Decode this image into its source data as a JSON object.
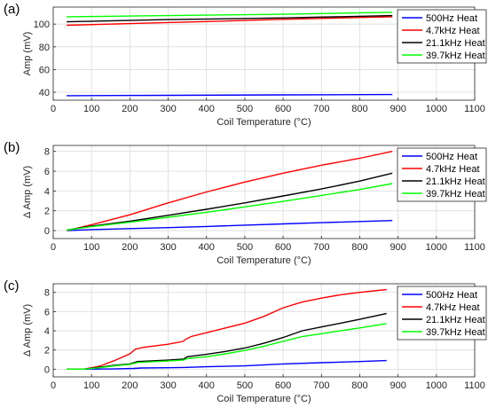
{
  "chart_data": [
    {
      "type": "line",
      "panel_label": "(a)",
      "xlabel": "Coil Temperature (°C)",
      "ylabel": "Amp (mV)",
      "xlim": [
        0,
        1100
      ],
      "ylim": [
        33,
        115
      ],
      "xticks": [
        0,
        100,
        200,
        300,
        400,
        500,
        600,
        700,
        800,
        900,
        1000,
        1100
      ],
      "yticks": [
        40,
        60,
        80,
        100
      ],
      "grid": true,
      "legend_position": "top-right",
      "series": [
        {
          "name": "500Hz Heat",
          "color": "#0000ff",
          "x": [
            35,
            300,
            600,
            885
          ],
          "y": [
            37,
            37.3,
            37.7,
            38
          ]
        },
        {
          "name": "4.7kHz Heat",
          "color": "#ff0000",
          "x": [
            35,
            200,
            400,
            600,
            885
          ],
          "y": [
            99,
            100.5,
            102.3,
            104.2,
            106.5
          ]
        },
        {
          "name": "21.1kHz Heat",
          "color": "#000000",
          "x": [
            35,
            300,
            600,
            885
          ],
          "y": [
            102,
            104,
            105.5,
            107.5
          ]
        },
        {
          "name": "39.7kHz Heat",
          "color": "#00ff00",
          "x": [
            35,
            300,
            600,
            885
          ],
          "y": [
            106.5,
            107.5,
            108.7,
            110.5
          ]
        }
      ]
    },
    {
      "type": "line",
      "panel_label": "(b)",
      "xlabel": "Coil Temperature (°C)",
      "ylabel": "Δ Amp (mV)",
      "xlim": [
        0,
        1100
      ],
      "ylim": [
        -0.8,
        8.6
      ],
      "xticks": [
        0,
        100,
        200,
        300,
        400,
        500,
        600,
        700,
        800,
        900,
        1000,
        1100
      ],
      "yticks": [
        0,
        2,
        4,
        6,
        8
      ],
      "grid": true,
      "legend_position": "top-right",
      "series": [
        {
          "name": "500Hz Heat",
          "color": "#0000ff",
          "x": [
            35,
            100,
            200,
            300,
            400,
            500,
            600,
            700,
            800,
            885
          ],
          "y": [
            0,
            0.1,
            0.2,
            0.3,
            0.42,
            0.55,
            0.68,
            0.8,
            0.92,
            1.02
          ]
        },
        {
          "name": "4.7kHz Heat",
          "color": "#ff0000",
          "x": [
            35,
            100,
            200,
            300,
            400,
            500,
            600,
            700,
            800,
            885
          ],
          "y": [
            0,
            0.6,
            1.6,
            2.8,
            3.9,
            4.9,
            5.8,
            6.6,
            7.3,
            8.0
          ]
        },
        {
          "name": "21.1kHz Heat",
          "color": "#000000",
          "x": [
            35,
            100,
            200,
            300,
            400,
            500,
            600,
            700,
            800,
            885
          ],
          "y": [
            0.05,
            0.45,
            0.95,
            1.55,
            2.15,
            2.8,
            3.5,
            4.2,
            5.0,
            5.8
          ]
        },
        {
          "name": "39.7kHz Heat",
          "color": "#00ff00",
          "x": [
            35,
            100,
            200,
            300,
            400,
            500,
            600,
            700,
            800,
            885
          ],
          "y": [
            0.05,
            0.4,
            0.85,
            1.35,
            1.85,
            2.4,
            2.95,
            3.55,
            4.15,
            4.75
          ]
        }
      ]
    },
    {
      "type": "line",
      "panel_label": "(c)",
      "xlabel": "Coil Temperature (°C)",
      "ylabel": "Δ Amp (mV)",
      "xlim": [
        0,
        1100
      ],
      "ylim": [
        -0.8,
        8.9
      ],
      "xticks": [
        0,
        100,
        200,
        300,
        400,
        500,
        600,
        700,
        800,
        900,
        1000,
        1100
      ],
      "yticks": [
        0,
        2,
        4,
        6,
        8
      ],
      "grid": true,
      "legend_position": "top-right",
      "series": [
        {
          "name": "500Hz Heat",
          "color": "#0000ff",
          "x": [
            35,
            80,
            150,
            210,
            230,
            300,
            340,
            400,
            500,
            600,
            700,
            800,
            870
          ],
          "y": [
            0,
            0,
            0.02,
            0.08,
            0.12,
            0.15,
            0.18,
            0.25,
            0.35,
            0.55,
            0.68,
            0.8,
            0.9
          ]
        },
        {
          "name": "4.7kHz Heat",
          "color": "#ff0000",
          "x": [
            35,
            80,
            120,
            160,
            200,
            215,
            240,
            300,
            340,
            345,
            360,
            400,
            450,
            500,
            550,
            600,
            650,
            700,
            750,
            800,
            870
          ],
          "y": [
            0,
            0,
            0.3,
            0.9,
            1.6,
            2.1,
            2.3,
            2.6,
            2.9,
            3.1,
            3.4,
            3.8,
            4.3,
            4.8,
            5.5,
            6.4,
            7.0,
            7.4,
            7.75,
            8.0,
            8.3
          ]
        },
        {
          "name": "21.1kHz Heat",
          "color": "#000000",
          "x": [
            35,
            80,
            120,
            160,
            200,
            220,
            300,
            340,
            350,
            400,
            450,
            500,
            550,
            600,
            650,
            700,
            750,
            800,
            870
          ],
          "y": [
            0,
            0,
            0.2,
            0.4,
            0.55,
            0.8,
            0.95,
            1.05,
            1.3,
            1.55,
            1.85,
            2.2,
            2.7,
            3.3,
            4.0,
            4.4,
            4.8,
            5.2,
            5.8
          ]
        },
        {
          "name": "39.7kHz Heat",
          "color": "#00ff00",
          "x": [
            35,
            80,
            120,
            160,
            200,
            220,
            300,
            340,
            350,
            400,
            450,
            500,
            550,
            600,
            650,
            700,
            750,
            800,
            870
          ],
          "y": [
            0,
            0,
            0.15,
            0.35,
            0.5,
            0.7,
            0.85,
            0.95,
            1.1,
            1.3,
            1.6,
            1.95,
            2.4,
            2.9,
            3.4,
            3.7,
            4.0,
            4.3,
            4.75
          ]
        }
      ]
    }
  ]
}
